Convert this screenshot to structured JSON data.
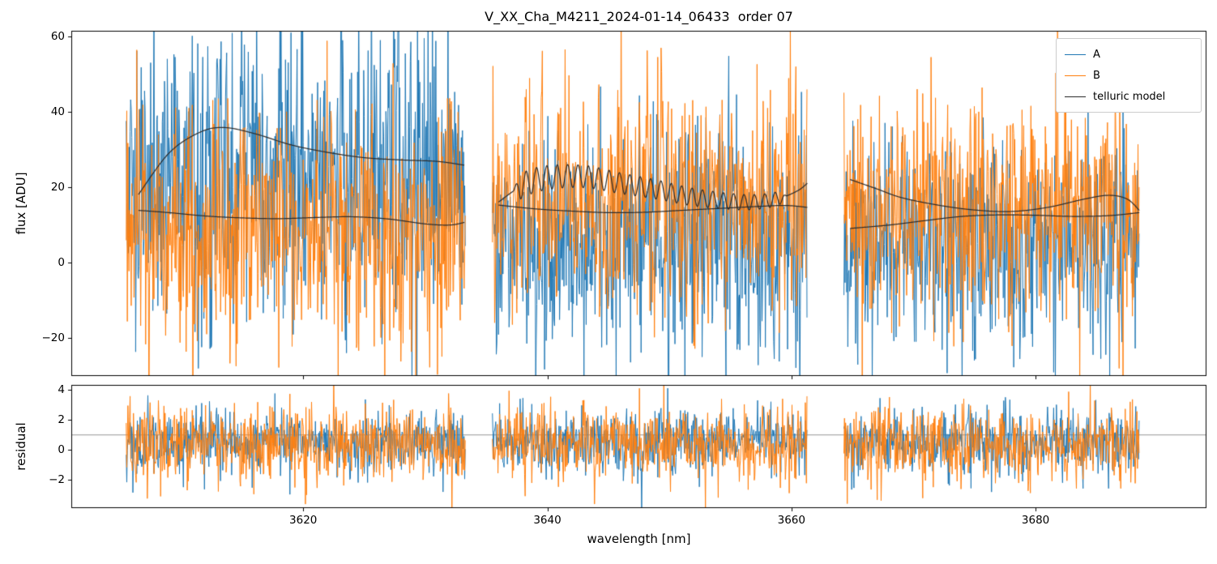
{
  "figure": {
    "background": "#ffffff"
  },
  "chart_data": [
    {
      "type": "line",
      "title": "V_XX_Cha_M4211_2024-01-14_06433  order 07",
      "ylabel": "flux [ADU]",
      "xlabel": "",
      "xlim": [
        3601,
        3694
      ],
      "ylim": [
        -30.2,
        61.5
      ],
      "yticks": [
        -20,
        0,
        20,
        40,
        60
      ],
      "xticks": [
        3620,
        3640,
        3660,
        3680
      ],
      "grid": false,
      "show_x_tick_labels": false,
      "points_per_nm": 22,
      "legend": {
        "position": "upper right",
        "entries": [
          {
            "label": "A",
            "color": "#1f77b4"
          },
          {
            "label": "B",
            "color": "#ff7f0e"
          },
          {
            "label": "telluric model",
            "color": "#2b2b2b"
          }
        ]
      },
      "segments": [
        {
          "x_start": 3605.5,
          "x_end": 3633.3
        },
        {
          "x_start": 3635.5,
          "x_end": 3661.3
        },
        {
          "x_start": 3664.3,
          "x_end": 3688.5
        }
      ],
      "noise_series": [
        {
          "name": "A",
          "color": "#1f77b4",
          "means": [
            24,
            6,
            5
          ],
          "sigmas": [
            20,
            15,
            14
          ]
        },
        {
          "name": "B",
          "color": "#ff7f0e",
          "means": [
            8,
            17,
            14
          ],
          "sigmas": [
            16,
            16,
            15
          ]
        }
      ],
      "telluric_model": {
        "color": "#2b2b2b",
        "curves": [
          {
            "points": [
              [
                3606.5,
                18
              ],
              [
                3609,
                29
              ],
              [
                3611.5,
                34.5
              ],
              [
                3613.5,
                35.8
              ],
              [
                3616,
                34.2
              ],
              [
                3619,
                31.2
              ],
              [
                3622,
                29.2
              ],
              [
                3625,
                27.8
              ],
              [
                3628,
                27.2
              ],
              [
                3631,
                26.8
              ],
              [
                3633.2,
                25.8
              ]
            ]
          },
          {
            "points": [
              [
                3606.5,
                13.8
              ],
              [
                3609,
                13.2
              ],
              [
                3612,
                12.3
              ],
              [
                3615,
                11.8
              ],
              [
                3618,
                11.6
              ],
              [
                3621,
                11.9
              ],
              [
                3624,
                12.1
              ],
              [
                3627,
                11.5
              ],
              [
                3630,
                10.2
              ],
              [
                3632,
                9.9
              ],
              [
                3633.2,
                10.6
              ]
            ]
          },
          {
            "points": [
              [
                3636,
                16
              ],
              [
                3638,
                20.5
              ],
              [
                3640,
                22.5
              ],
              [
                3643,
                22.8
              ],
              [
                3646,
                21
              ],
              [
                3649,
                19.3
              ],
              [
                3652,
                17.3
              ],
              [
                3655,
                16.2
              ],
              [
                3657,
                16
              ],
              [
                3659,
                17
              ],
              [
                3660.5,
                19
              ],
              [
                3661.3,
                21
              ]
            ],
            "oscillation": {
              "period": 0.85,
              "amplitude_start": 3.4,
              "amplitude_end": 1.8,
              "x_start": 3637.2,
              "x_end": 3659.6
            }
          },
          {
            "points": [
              [
                3636,
                15.2
              ],
              [
                3639,
                14.2
              ],
              [
                3642,
                13.6
              ],
              [
                3645,
                13.2
              ],
              [
                3648,
                13.3
              ],
              [
                3651,
                13.8
              ],
              [
                3654,
                14.3
              ],
              [
                3657,
                14.8
              ],
              [
                3659.5,
                15.1
              ],
              [
                3661.3,
                14.6
              ]
            ]
          },
          {
            "points": [
              [
                3664.8,
                22
              ],
              [
                3667,
                19.5
              ],
              [
                3669,
                17.2
              ],
              [
                3672,
                15.2
              ],
              [
                3675,
                13.9
              ],
              [
                3678,
                13.5
              ],
              [
                3681,
                14.6
              ],
              [
                3684,
                16.8
              ],
              [
                3686,
                17.8
              ],
              [
                3687.5,
                16.8
              ],
              [
                3688.5,
                13.8
              ]
            ]
          },
          {
            "points": [
              [
                3664.8,
                9
              ],
              [
                3668,
                9.9
              ],
              [
                3671,
                11.1
              ],
              [
                3674,
                12.2
              ],
              [
                3677,
                12.6
              ],
              [
                3680,
                12.5
              ],
              [
                3683,
                12.2
              ],
              [
                3686,
                12.4
              ],
              [
                3688.5,
                13.2
              ]
            ]
          }
        ]
      }
    },
    {
      "type": "line",
      "title": "",
      "ylabel": "residual",
      "xlabel": "wavelength [nm]",
      "xlim": [
        3601,
        3694
      ],
      "ylim": [
        -3.9,
        4.35
      ],
      "yticks": [
        -2,
        0,
        2,
        4
      ],
      "xticks": [
        3620,
        3640,
        3660,
        3680
      ],
      "grid": false,
      "show_x_tick_labels": true,
      "points_per_nm": 22,
      "hline": 1,
      "hline_color": "#8a8a8a",
      "segments": [
        {
          "x_start": 3605.5,
          "x_end": 3633.3
        },
        {
          "x_start": 3635.5,
          "x_end": 3661.3
        },
        {
          "x_start": 3664.3,
          "x_end": 3688.5
        }
      ],
      "noise_series": [
        {
          "name": "A",
          "color": "#1f77b4",
          "means": [
            0.45,
            0.45,
            0.45
          ],
          "sigmas": [
            1.1,
            1.1,
            1.1
          ]
        },
        {
          "name": "B",
          "color": "#ff7f0e",
          "means": [
            0.35,
            0.35,
            0.35
          ],
          "sigmas": [
            1.25,
            1.25,
            1.25
          ]
        }
      ]
    }
  ]
}
